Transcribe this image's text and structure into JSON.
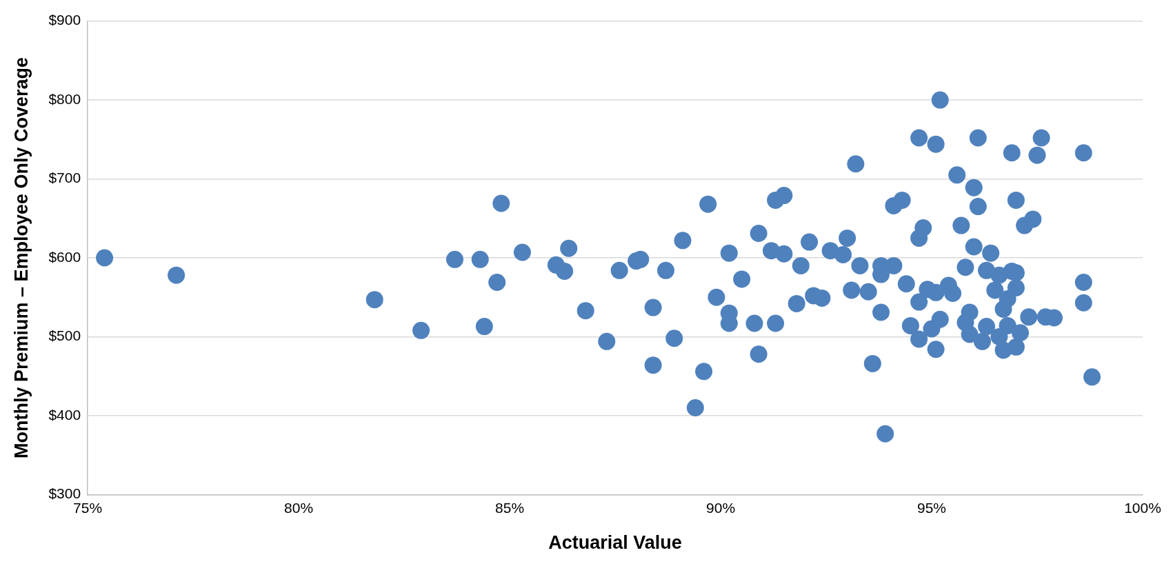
{
  "chart_data": {
    "type": "scatter",
    "xlabel": "Actuarial Value",
    "ylabel": "Monthly Premium – Employee Only Coverage",
    "xlim": [
      75,
      100
    ],
    "xticks": [
      {
        "value": 75,
        "label": "75%"
      },
      {
        "value": 80,
        "label": "80%"
      },
      {
        "value": 85,
        "label": "85%"
      },
      {
        "value": 90,
        "label": "90%"
      },
      {
        "value": 95,
        "label": "95%"
      },
      {
        "value": 100,
        "label": "100%"
      }
    ],
    "ylim": [
      300,
      900
    ],
    "yticks": [
      {
        "value": 300,
        "label": "$300"
      },
      {
        "value": 400,
        "label": "$400"
      },
      {
        "value": 500,
        "label": "$500"
      },
      {
        "value": 600,
        "label": "$600"
      },
      {
        "value": 700,
        "label": "$700"
      },
      {
        "value": 800,
        "label": "$800"
      },
      {
        "value": 900,
        "label": "$900"
      }
    ],
    "grid": "y",
    "marker": "circle",
    "legend": false,
    "series": [
      {
        "color": "#4f81bd",
        "x": [
          75.4,
          77.1,
          81.8,
          82.9,
          83.7,
          84.3,
          84.4,
          84.7,
          84.8,
          85.3,
          86.1,
          86.3,
          86.4,
          86.8,
          87.3,
          87.6,
          88.0,
          88.1,
          88.4,
          88.4,
          88.7,
          88.9,
          89.1,
          89.4,
          89.6,
          89.7,
          89.9,
          90.2,
          90.2,
          90.2,
          90.5,
          90.8,
          90.9,
          90.9,
          91.2,
          91.3,
          91.3,
          91.5,
          91.5,
          91.8,
          91.9,
          92.1,
          92.2,
          92.4,
          92.6,
          92.9,
          93.0,
          93.1,
          93.2,
          93.3,
          93.5,
          93.6,
          93.8,
          93.8,
          93.8,
          93.9,
          94.1,
          94.1,
          94.3,
          94.4,
          94.5,
          94.7,
          94.7,
          94.7,
          94.8,
          94.7,
          95.2,
          95.1,
          96.1,
          96.9,
          97.6,
          97.5,
          98.6,
          95.6,
          96.0,
          96.1,
          97.0,
          97.4,
          97.2,
          95.7,
          96.0,
          96.4,
          95.8,
          96.3,
          96.6,
          96.9,
          97.0,
          98.6,
          98.6,
          95.4,
          95.5,
          95.1,
          94.9,
          96.5,
          97.0,
          96.8,
          96.7,
          95.9,
          95.2,
          95.8,
          97.3,
          97.7,
          97.9,
          95.0,
          95.9,
          96.3,
          96.2,
          96.7,
          97.0,
          97.1,
          96.8,
          95.1,
          98.8,
          96.6
        ],
        "values": [
          600,
          578,
          547,
          508,
          598,
          598,
          513,
          569,
          669,
          607,
          591,
          583,
          612,
          533,
          494,
          584,
          596,
          598,
          537,
          464,
          584,
          498,
          622,
          410,
          456,
          668,
          550,
          606,
          530,
          517,
          573,
          517,
          631,
          478,
          609,
          673,
          517,
          679,
          605,
          542,
          590,
          620,
          552,
          549,
          609,
          604,
          625,
          559,
          719,
          590,
          557,
          466,
          590,
          579,
          531,
          377,
          590,
          666,
          673,
          567,
          514,
          497,
          544,
          752,
          638,
          625,
          800,
          744,
          752,
          733,
          752,
          730,
          733,
          705,
          689,
          665,
          673,
          649,
          641,
          641,
          614,
          606,
          588,
          584,
          578,
          583,
          581,
          569,
          543,
          565,
          555,
          556,
          560,
          559,
          562,
          548,
          535,
          531,
          522,
          518,
          525,
          525,
          524,
          510,
          503,
          513,
          494,
          483,
          487,
          505,
          514,
          484,
          449,
          500
        ]
      }
    ]
  }
}
